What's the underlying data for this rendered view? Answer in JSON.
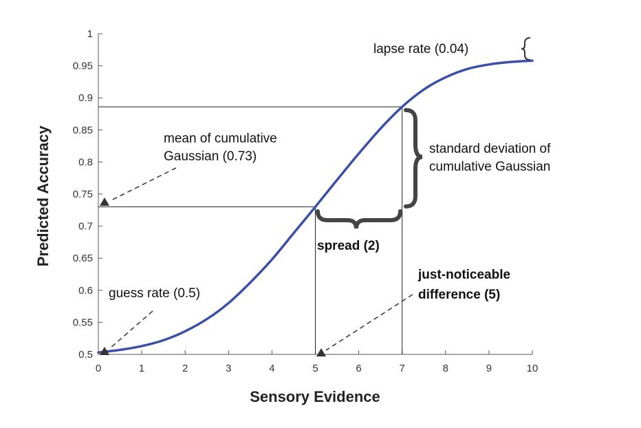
{
  "chart_data": {
    "type": "line",
    "xlabel": "Sensory Evidence",
    "ylabel": "Predicted Accuracy",
    "xlim": [
      0,
      10
    ],
    "ylim": [
      0.5,
      1
    ],
    "x_ticks": [
      "0",
      "1",
      "2",
      "3",
      "4",
      "5",
      "6",
      "7",
      "8",
      "9",
      "10"
    ],
    "y_ticks": [
      "0.5",
      "0.55",
      "0.6",
      "0.65",
      "0.7",
      "0.75",
      "0.8",
      "0.85",
      "0.9",
      "0.95",
      "1"
    ],
    "grid": false,
    "series": [
      {
        "color": "#3a4fa6",
        "x": [
          0,
          0.5,
          1,
          1.5,
          2,
          2.5,
          3,
          3.5,
          4,
          4.5,
          5,
          5.5,
          6,
          6.5,
          7,
          7.5,
          8,
          8.5,
          9,
          9.5,
          10
        ],
        "y": [
          0.503,
          0.507,
          0.513,
          0.522,
          0.536,
          0.555,
          0.58,
          0.612,
          0.648,
          0.689,
          0.73,
          0.772,
          0.813,
          0.852,
          0.886,
          0.913,
          0.932,
          0.945,
          0.952,
          0.956,
          0.958
        ]
      }
    ],
    "reference_lines": {
      "mean": {
        "x": 5,
        "y": 0.73
      },
      "jnd": {
        "x": 7,
        "y": 0.886
      }
    },
    "annotations": {
      "lapse": "lapse rate (0.04)",
      "mean_line1": "mean of cumulative",
      "mean_line2": "Gaussian (0.73)",
      "sd_line1": "standard deviation of",
      "sd_line2": "cumulative Gaussian",
      "spread": "spread (2)",
      "guess": "guess rate (0.5)",
      "jnd_line1": "just-noticeable",
      "jnd_line2": "difference (5)"
    }
  }
}
